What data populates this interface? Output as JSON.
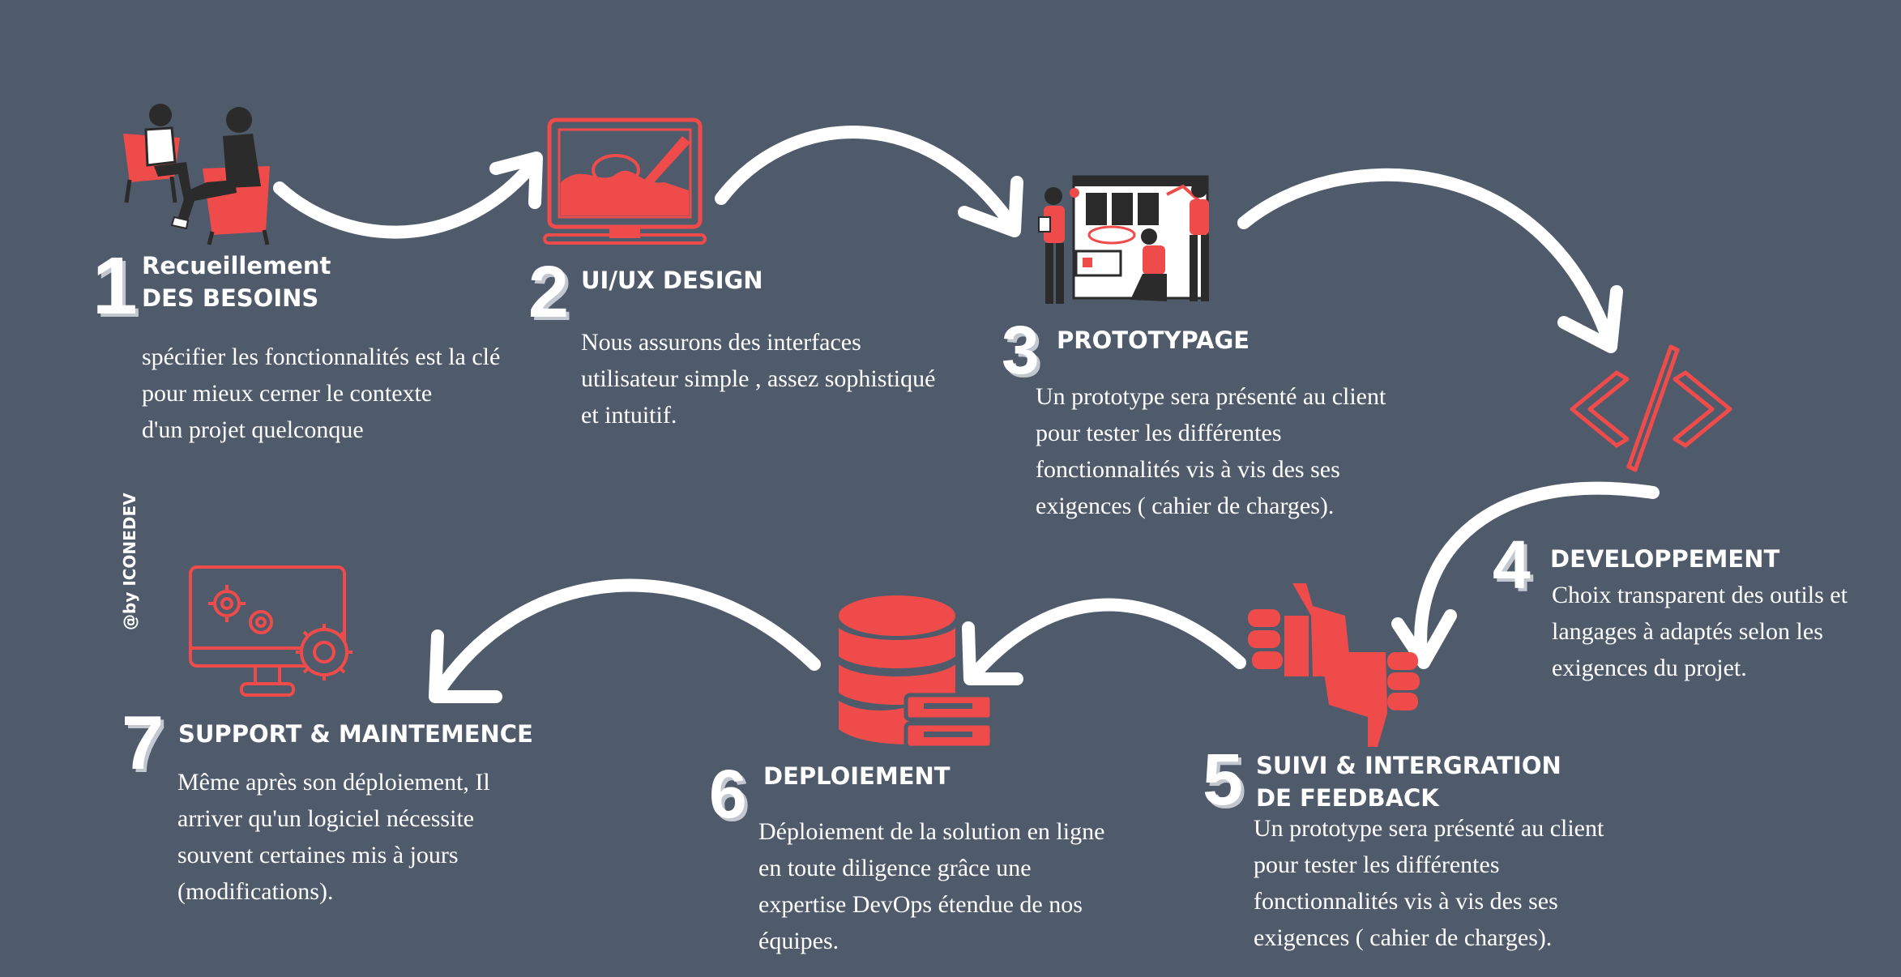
{
  "credit": "@by ICONEDEV",
  "colors": {
    "background": "#4f5b6b",
    "accent": "#f04b4b",
    "text": "#ffffff",
    "dark": "#2b2b2b"
  },
  "steps": [
    {
      "number": "1",
      "title_lines": [
        "Recueillement",
        "DES BESOINS"
      ],
      "desc_lines": [
        "spécifier les fonctionnalités est la clé",
        "pour mieux cerner le contexte",
        "d'un projet quelconque"
      ],
      "icon": "meeting-people-icon"
    },
    {
      "number": "2",
      "title_lines": [
        "UI/UX DESIGN"
      ],
      "desc_lines": [
        "Nous assurons  des interfaces",
        "utilisateur simple , assez sophistiqué",
        "et intuitif."
      ],
      "icon": "design-monitor-icon"
    },
    {
      "number": "3",
      "title_lines": [
        "PROTOTYPAGE"
      ],
      "desc_lines": [
        "Un prototype sera présenté au client",
        "pour tester les différentes",
        "fonctionnalités vis à vis des ses",
        "exigences ( cahier de charges)."
      ],
      "icon": "prototype-team-icon"
    },
    {
      "number": "4",
      "title_lines": [
        "DEVELOPPEMENT"
      ],
      "desc_lines": [
        "Choix transparent des outils et",
        "langages à adaptés selon les",
        "exigences du projet."
      ],
      "icon": "code-brackets-icon"
    },
    {
      "number": "5",
      "title_lines": [
        "SUIVI & INTERGRATION",
        "DE  FEEDBACK"
      ],
      "desc_lines": [
        "Un prototype sera présenté au client",
        "pour tester les différentes",
        "fonctionnalités vis à vis des ses",
        "exigences ( cahier de charges)."
      ],
      "icon": "thumbs-feedback-icon"
    },
    {
      "number": "6",
      "title_lines": [
        "DEPLOIEMENT"
      ],
      "desc_lines": [
        "Déploiement de la solution en ligne",
        "en toute diligence grâce une",
        "expertise  DevOps étendue de nos",
        "équipes."
      ],
      "icon": "database-server-icon"
    },
    {
      "number": "7",
      "title_lines": [
        "SUPPORT & MAINTEMENCE"
      ],
      "desc_lines": [
        "Même après son déploiement, Il",
        "arriver qu'un logiciel nécessite",
        "souvent certaines mis à jours",
        "(modifications)."
      ],
      "icon": "gear-monitor-icon"
    }
  ]
}
